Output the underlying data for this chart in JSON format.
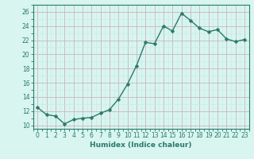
{
  "x": [
    0,
    1,
    2,
    3,
    4,
    5,
    6,
    7,
    8,
    9,
    10,
    11,
    12,
    13,
    14,
    15,
    16,
    17,
    18,
    19,
    20,
    21,
    22,
    23
  ],
  "y": [
    12.5,
    11.5,
    11.3,
    10.2,
    10.8,
    11.0,
    11.1,
    11.7,
    12.2,
    13.7,
    15.8,
    18.4,
    21.7,
    21.5,
    24.0,
    23.3,
    25.8,
    24.8,
    23.7,
    23.2,
    23.5,
    22.2,
    21.8,
    22.1
  ],
  "line_color": "#2a7a6a",
  "marker_color": "#2a7a6a",
  "bg_color": "#d8f5f0",
  "major_grid_color": "#c8b8b8",
  "minor_grid_color": "#c8e8e4",
  "axis_color": "#2a7a6a",
  "tick_color": "#2a7a6a",
  "xlabel": "Humidex (Indice chaleur)",
  "xlim": [
    -0.5,
    23.5
  ],
  "ylim": [
    9.5,
    27.0
  ],
  "yticks": [
    10,
    12,
    14,
    16,
    18,
    20,
    22,
    24,
    26
  ],
  "xticks": [
    0,
    1,
    2,
    3,
    4,
    5,
    6,
    7,
    8,
    9,
    10,
    11,
    12,
    13,
    14,
    15,
    16,
    17,
    18,
    19,
    20,
    21,
    22,
    23
  ],
  "tick_fontsize": 5.5,
  "label_fontsize": 6.5,
  "marker_size": 2.5,
  "line_width": 1.0
}
